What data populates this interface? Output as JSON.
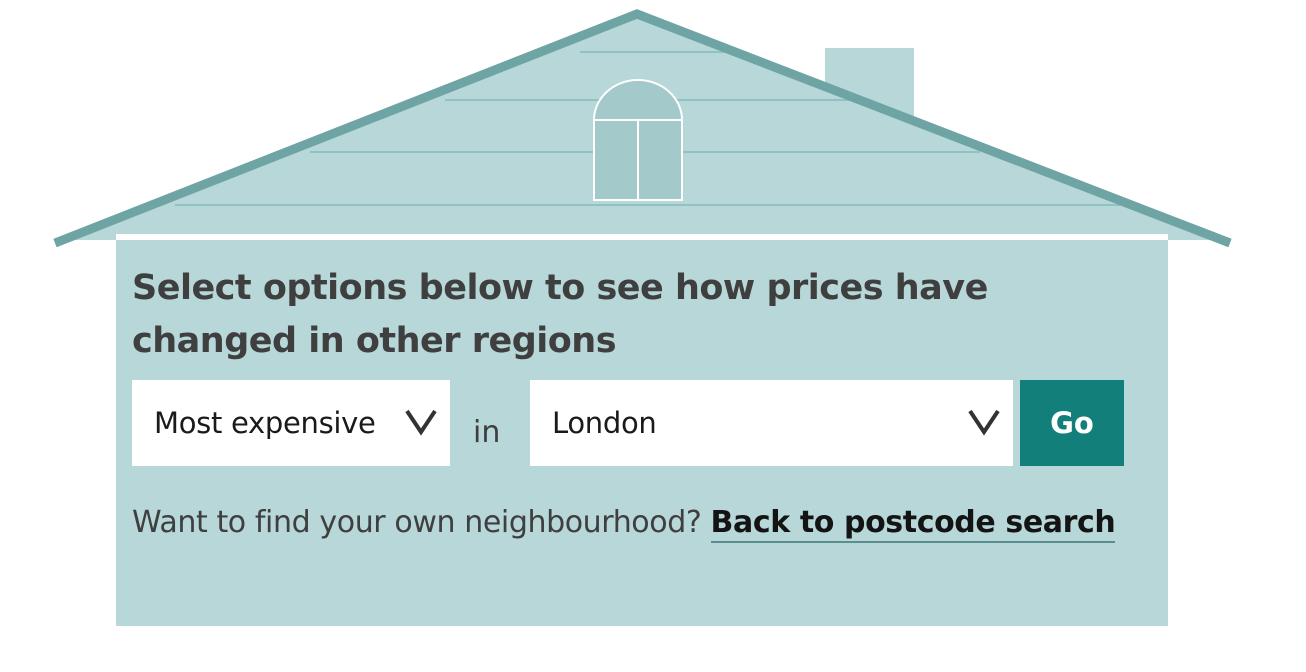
{
  "colors": {
    "roof_fill": "#b7d7d8",
    "roof_edge": "#6fa4a4",
    "siding_line": "#8fc2c2",
    "chimney": "#b7d7d8",
    "accent_button": "#137f7a",
    "text": "#3f3f3f"
  },
  "panel": {
    "heading": "Select options below to see how prices have changed in other regions"
  },
  "controls": {
    "type_select": {
      "value": "Most expensive",
      "icon": "chevron-down-icon"
    },
    "connector": "in",
    "region_select": {
      "value": "London",
      "icon": "chevron-down-icon"
    },
    "go_label": "Go"
  },
  "footer": {
    "prompt": "Want to find your own neighbourhood? ",
    "link_label": "Back to postcode search"
  }
}
